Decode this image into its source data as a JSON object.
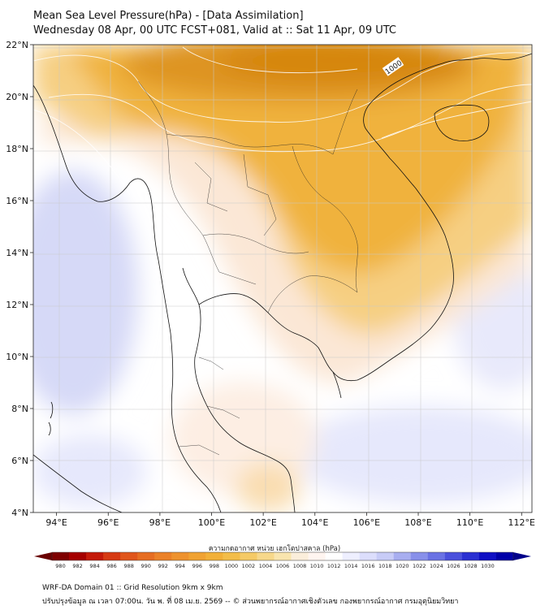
{
  "title": {
    "line1": "Mean Sea Level Pressure(hPa) - [Data Assimilation]",
    "line2": "Wednesday 08 Apr, 00 UTC FCST+081, Valid at :: Sat 11 Apr, 09 UTC"
  },
  "map": {
    "lat_labels": [
      "22°N",
      "20°N",
      "18°N",
      "16°N",
      "14°N",
      "12°N",
      "10°N",
      "8°N",
      "6°N",
      "4°N"
    ],
    "lat_values": [
      22,
      20,
      18,
      16,
      14,
      12,
      10,
      8,
      6,
      4
    ],
    "lon_labels": [
      "94°E",
      "96°E",
      "98°E",
      "100°E",
      "102°E",
      "104°E",
      "106°E",
      "108°E",
      "110°E",
      "112°E"
    ],
    "lon_values": [
      94,
      96,
      98,
      100,
      102,
      104,
      106,
      108,
      110,
      112
    ],
    "lon_range": [
      93.1,
      112.4
    ],
    "lat_range": [
      4.0,
      22.0
    ],
    "contour_label": "1000",
    "colors": {
      "high_orange": "#d88a10",
      "mid_orange": "#f0b540",
      "light_orange": "#f7d48a",
      "peach": "#fbeadc",
      "white": "#ffffff",
      "lavender": "#e4e6fb",
      "blue_pale": "#d2d6f6"
    }
  },
  "colorbar": {
    "label": "ความกดอากาศ หน่วย เฮกโตปาสคาล (hPa)",
    "ticks": [
      "980",
      "982",
      "984",
      "986",
      "988",
      "990",
      "992",
      "994",
      "996",
      "998",
      "1000",
      "1002",
      "1004",
      "1006",
      "1008",
      "1010",
      "1012",
      "1014",
      "1016",
      "1018",
      "1020",
      "1022",
      "1024",
      "1026",
      "1028",
      "1030"
    ],
    "colors": [
      "#7e0000",
      "#a50000",
      "#c41a0a",
      "#d63a14",
      "#e0561c",
      "#e66d22",
      "#eb8128",
      "#ee922e",
      "#f0a232",
      "#f2b038",
      "#f3bd48",
      "#f5ca66",
      "#f7d88a",
      "#f9e5ae",
      "#fbeedb",
      "#fff5f0",
      "#ffffff",
      "#eeefff",
      "#dcdefc",
      "#c8ccf7",
      "#a8aef0",
      "#8890ea",
      "#6a72e4",
      "#4a50dc",
      "#2a30d2",
      "#1010c4",
      "#0000a8"
    ]
  },
  "footer": {
    "line1": "WRF-DA Domain 01 :: Grid Resolution 9km x 9km",
    "line2": "ปรับปรุงข้อมูล ณ เวลา 07:00น. วัน พ. ที่ 08 เม.ย. 2569 -- © ส่วนพยากรณ์อากาศเชิงตัวเลข กองพยากรณ์อากาศ กรมอุตุนิยมวิทยา"
  }
}
